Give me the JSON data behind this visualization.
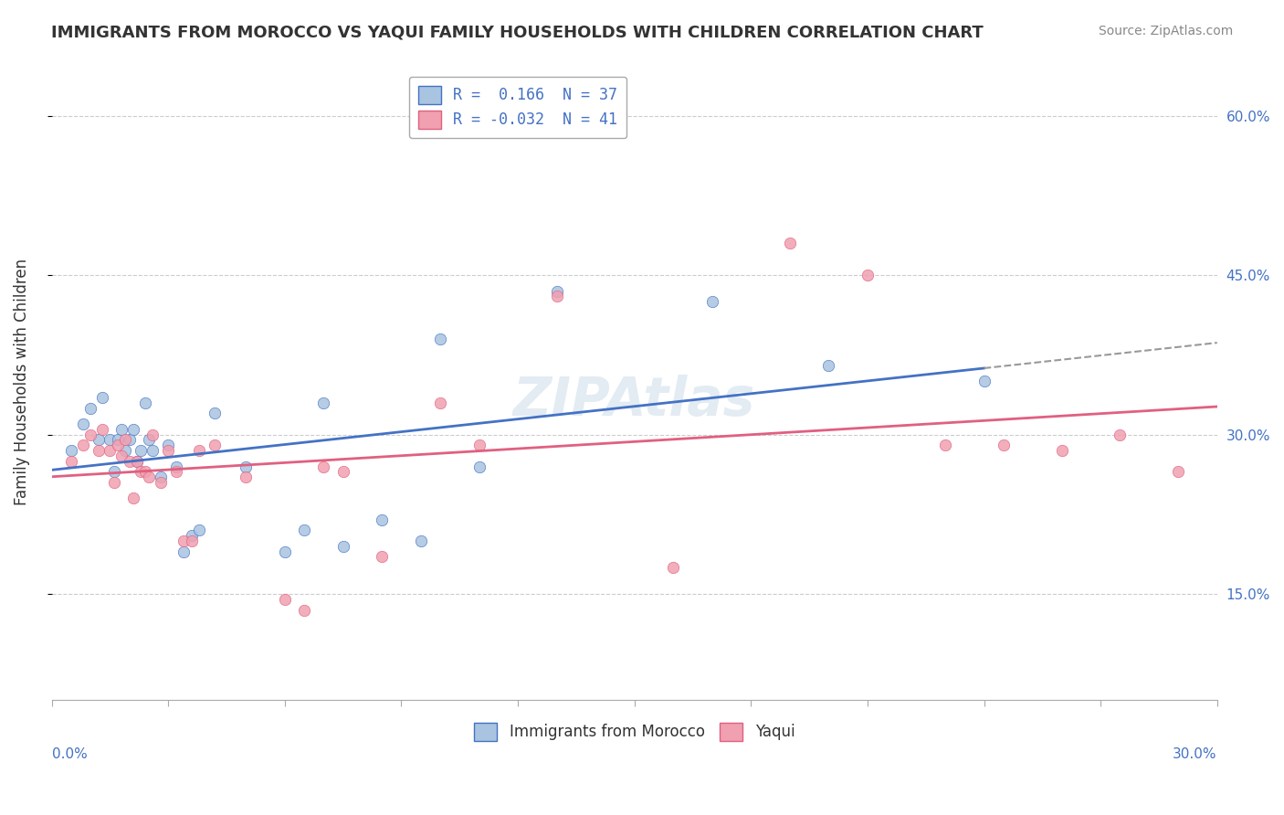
{
  "title": "IMMIGRANTS FROM MOROCCO VS YAQUI FAMILY HOUSEHOLDS WITH CHILDREN CORRELATION CHART",
  "source": "Source: ZipAtlas.com",
  "ylabel": "Family Households with Children",
  "ytick_values": [
    0.15,
    0.3,
    0.45,
    0.6
  ],
  "xmin": 0.0,
  "xmax": 0.3,
  "ymin": 0.05,
  "ymax": 0.65,
  "legend_r1": "R =  0.166  N = 37",
  "legend_r2": "R = -0.032  N = 41",
  "blue_color": "#a8c4e0",
  "pink_color": "#f0a0b0",
  "line_blue": "#4472c4",
  "line_pink": "#e06080",
  "blue_scatter_x": [
    0.005,
    0.008,
    0.01,
    0.012,
    0.013,
    0.015,
    0.016,
    0.017,
    0.018,
    0.019,
    0.02,
    0.021,
    0.022,
    0.023,
    0.024,
    0.025,
    0.026,
    0.028,
    0.03,
    0.032,
    0.034,
    0.036,
    0.038,
    0.042,
    0.05,
    0.06,
    0.065,
    0.07,
    0.075,
    0.085,
    0.095,
    0.1,
    0.11,
    0.13,
    0.17,
    0.2,
    0.24
  ],
  "blue_scatter_y": [
    0.285,
    0.31,
    0.325,
    0.295,
    0.335,
    0.295,
    0.265,
    0.295,
    0.305,
    0.285,
    0.295,
    0.305,
    0.275,
    0.285,
    0.33,
    0.295,
    0.285,
    0.26,
    0.29,
    0.27,
    0.19,
    0.205,
    0.21,
    0.32,
    0.27,
    0.19,
    0.21,
    0.33,
    0.195,
    0.22,
    0.2,
    0.39,
    0.27,
    0.435,
    0.425,
    0.365,
    0.35
  ],
  "pink_scatter_x": [
    0.005,
    0.008,
    0.01,
    0.012,
    0.013,
    0.015,
    0.016,
    0.017,
    0.018,
    0.019,
    0.02,
    0.021,
    0.022,
    0.023,
    0.024,
    0.025,
    0.026,
    0.028,
    0.03,
    0.032,
    0.034,
    0.036,
    0.038,
    0.042,
    0.05,
    0.06,
    0.065,
    0.07,
    0.075,
    0.085,
    0.1,
    0.11,
    0.13,
    0.16,
    0.19,
    0.21,
    0.23,
    0.245,
    0.26,
    0.275,
    0.29
  ],
  "pink_scatter_y": [
    0.275,
    0.29,
    0.3,
    0.285,
    0.305,
    0.285,
    0.255,
    0.29,
    0.28,
    0.295,
    0.275,
    0.24,
    0.275,
    0.265,
    0.265,
    0.26,
    0.3,
    0.255,
    0.285,
    0.265,
    0.2,
    0.2,
    0.285,
    0.29,
    0.26,
    0.145,
    0.135,
    0.27,
    0.265,
    0.185,
    0.33,
    0.29,
    0.43,
    0.175,
    0.48,
    0.45,
    0.29,
    0.29,
    0.285,
    0.3,
    0.265
  ]
}
